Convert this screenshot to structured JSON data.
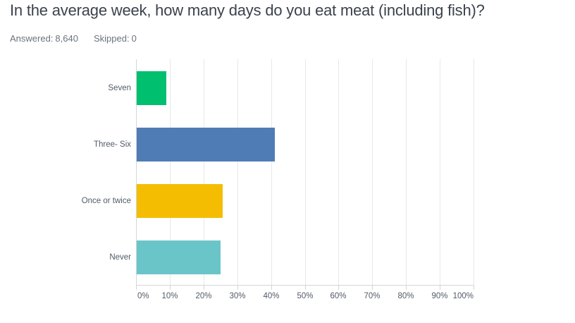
{
  "header": {
    "title": "In the average week, how many days do you eat meat (including fish)?",
    "answered_label": "Answered:",
    "answered_count": "8,640",
    "skipped_label": "Skipped:",
    "skipped_count": "0"
  },
  "chart_data": {
    "type": "bar",
    "orientation": "horizontal",
    "title": "In the average week, how many days do you eat meat (including fish)?",
    "categories": [
      "Seven",
      "Three- Six",
      "Once or twice",
      "Never"
    ],
    "values": [
      8.7,
      41.0,
      25.5,
      24.9
    ],
    "value_unit": "%",
    "colors": [
      "#00bf6f",
      "#507cb5",
      "#f5bd02",
      "#6ac5c9"
    ],
    "x_ticks": [
      "0%",
      "10%",
      "20%",
      "30%",
      "40%",
      "50%",
      "60%",
      "70%",
      "80%",
      "90%",
      "100%"
    ],
    "xlim": [
      0,
      100
    ],
    "grid": "vertical",
    "legend": "none"
  }
}
